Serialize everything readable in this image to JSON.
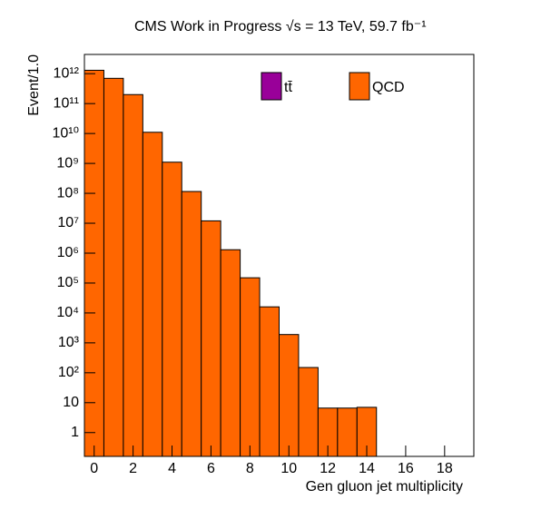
{
  "chart_data": {
    "type": "histogram",
    "title": "CMS Work in Progress    √s = 13 TeV, 59.7 fb⁻¹",
    "xlabel": "Gen gluon jet multiplicity",
    "ylabel": "Event/1.0",
    "bins": [
      -0.5,
      0.5,
      1.5,
      2.5,
      3.5,
      4.5,
      5.5,
      6.5,
      7.5,
      8.5,
      9.5,
      10.5,
      11.5,
      12.5,
      13.5,
      14.5
    ],
    "series": [
      {
        "name": "QCD",
        "color": "#ff6600",
        "values": [
          1300000000000,
          700000000000,
          200000000000,
          11000000000,
          1100000000,
          115000000,
          12000000,
          1300000,
          150000,
          16000,
          1900,
          150,
          6.6,
          6.6,
          7
        ]
      }
    ],
    "legend": [
      {
        "name": "tt̄",
        "color": "#990099"
      },
      {
        "name": "QCD",
        "color": "#ff6600"
      }
    ],
    "xlim": [
      -0.5,
      19.5
    ],
    "xticks": [
      0,
      2,
      4,
      6,
      8,
      10,
      12,
      14,
      16,
      18
    ],
    "ylim": [
      0.16,
      4400000000000
    ],
    "yticks": [
      1,
      10,
      {
        "value": 100,
        "label": "10²"
      },
      {
        "value": 1000,
        "label": "10³"
      },
      {
        "value": 10000,
        "label": "10⁴"
      },
      {
        "value": 100000,
        "label": "10⁵"
      },
      {
        "value": 1000000,
        "label": "10⁶"
      },
      {
        "value": 10000000,
        "label": "10⁷"
      },
      {
        "value": 100000000,
        "label": "10⁸"
      },
      {
        "value": 1000000000,
        "label": "10⁹"
      },
      {
        "value": 10000000000,
        "label": "10¹⁰"
      },
      {
        "value": 100000000000,
        "label": "10¹¹"
      },
      {
        "value": 1000000000000,
        "label": "10¹²"
      }
    ],
    "ylog": true
  }
}
